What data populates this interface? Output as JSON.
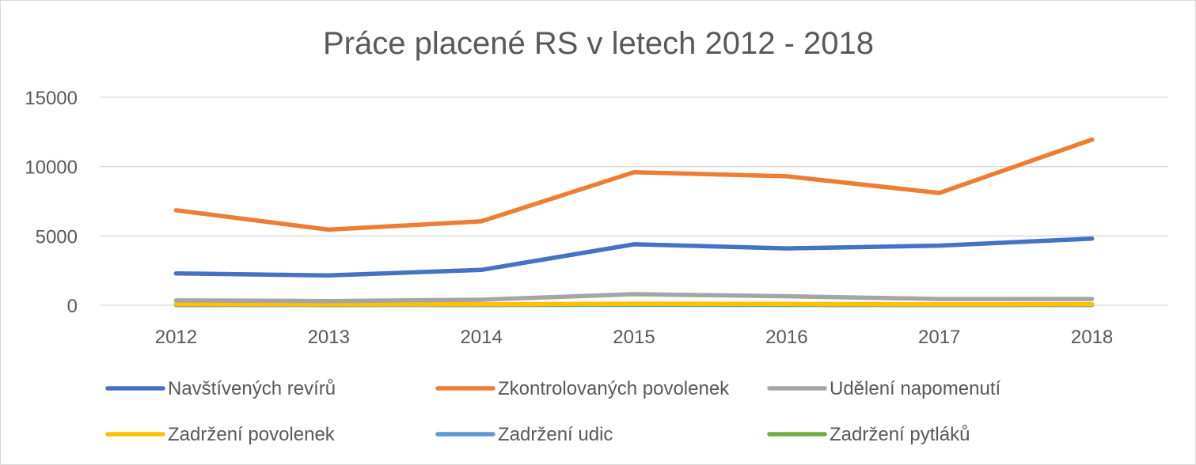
{
  "chart_data": {
    "type": "line",
    "title": "Práce placené RS v letech 2012 - 2018",
    "xlabel": "",
    "ylabel": "",
    "categories": [
      "2012",
      "2013",
      "2014",
      "2015",
      "2016",
      "2017",
      "2018"
    ],
    "ylim": [
      0,
      15000
    ],
    "yticks": [
      0,
      5000,
      10000,
      15000
    ],
    "ytick_labels": [
      "0",
      "5000",
      "10000",
      "15000"
    ],
    "grid": true,
    "legend_position": "bottom",
    "series": [
      {
        "name": "Navštívených revírů",
        "color": "#4472C4",
        "values": [
          2300,
          2150,
          2550,
          4400,
          4100,
          4300,
          4800
        ]
      },
      {
        "name": "Zkontrolovaných povolenek",
        "color": "#ED7D31",
        "values": [
          6850,
          5450,
          6050,
          9600,
          9300,
          8100,
          11950
        ]
      },
      {
        "name": "Udělení napomenutí",
        "color": "#A5A5A5",
        "values": [
          350,
          300,
          400,
          800,
          650,
          450,
          450
        ]
      },
      {
        "name": "Zadržení povolenek",
        "color": "#FFC000",
        "values": [
          80,
          60,
          70,
          110,
          90,
          70,
          80
        ]
      },
      {
        "name": "Zadržení udic",
        "color": "#5B9BD5",
        "values": [
          50,
          40,
          50,
          70,
          60,
          50,
          50
        ]
      },
      {
        "name": "Zadržení pytláků",
        "color": "#70AD47",
        "values": [
          20,
          15,
          20,
          30,
          25,
          20,
          25
        ]
      }
    ]
  }
}
